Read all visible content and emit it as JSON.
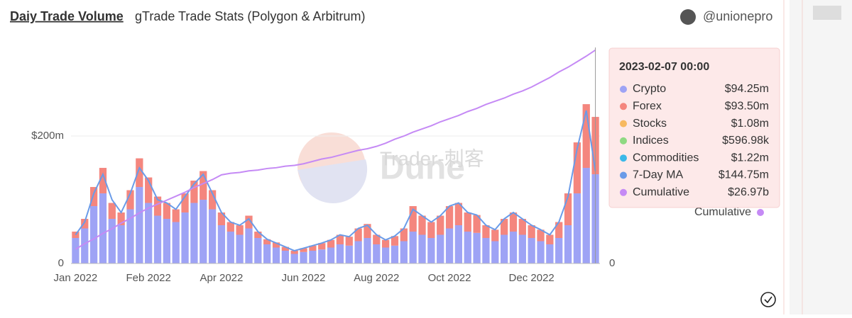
{
  "header": {
    "title": "Daiy Trade Volume",
    "subtitle": "gTrade Trade Stats (Polygon & Arbitrum)",
    "author": "@unionepro"
  },
  "watermark": {
    "brand": "Dune",
    "tag": "Trader-刺客"
  },
  "chart_data": {
    "type": "bar",
    "categories": [
      "Jan 2022",
      null,
      null,
      null,
      null,
      null,
      null,
      null,
      "Feb 2022",
      null,
      null,
      null,
      null,
      null,
      null,
      null,
      "Apr 2022",
      null,
      null,
      null,
      null,
      null,
      null,
      null,
      null,
      "Jun 2022",
      null,
      null,
      null,
      null,
      null,
      null,
      null,
      "Aug 2022",
      null,
      null,
      null,
      null,
      null,
      null,
      null,
      "Oct 2022",
      null,
      null,
      null,
      null,
      null,
      null,
      null,
      null,
      "Dec 2022",
      null,
      null,
      null,
      null,
      null,
      null,
      null
    ],
    "series": [
      {
        "name": "Crypto",
        "color": "#9ea3f5",
        "values": [
          40,
          55,
          90,
          110,
          70,
          60,
          85,
          120,
          95,
          75,
          70,
          65,
          80,
          95,
          100,
          85,
          60,
          50,
          45,
          55,
          40,
          30,
          25,
          20,
          15,
          18,
          20,
          22,
          25,
          30,
          28,
          35,
          40,
          30,
          25,
          28,
          35,
          50,
          45,
          40,
          45,
          55,
          60,
          50,
          48,
          40,
          35,
          45,
          50,
          45,
          40,
          35,
          30,
          40,
          60,
          110,
          150,
          140
        ]
      },
      {
        "name": "Forex",
        "color": "#f4867e",
        "values": [
          10,
          15,
          30,
          40,
          25,
          20,
          30,
          45,
          40,
          30,
          25,
          20,
          30,
          35,
          45,
          30,
          20,
          15,
          15,
          20,
          10,
          8,
          8,
          6,
          5,
          6,
          8,
          10,
          12,
          15,
          14,
          20,
          22,
          15,
          12,
          15,
          20,
          40,
          30,
          25,
          30,
          35,
          35,
          30,
          28,
          20,
          18,
          25,
          30,
          25,
          20,
          18,
          15,
          25,
          50,
          80,
          100,
          90
        ]
      },
      {
        "name": "7-Day MA",
        "color": "#6a9be8",
        "values": [
          45,
          65,
          110,
          140,
          100,
          80,
          110,
          150,
          130,
          100,
          95,
          85,
          105,
          125,
          140,
          110,
          80,
          65,
          60,
          70,
          50,
          38,
          32,
          26,
          20,
          24,
          28,
          32,
          37,
          45,
          42,
          55,
          60,
          45,
          37,
          43,
          55,
          85,
          75,
          65,
          75,
          90,
          95,
          80,
          76,
          60,
          53,
          70,
          80,
          70,
          60,
          53,
          45,
          65,
          105,
          180,
          240,
          145
        ]
      },
      {
        "name": "Cumulative",
        "color": "#c58af5",
        "axis": "y2",
        "values": [
          1.8,
          2.5,
          3.1,
          3.8,
          4.4,
          5.1,
          5.7,
          6.4,
          7.0,
          7.5,
          8.0,
          8.5,
          9.0,
          9.6,
          10.1,
          10.6,
          11.2,
          11.4,
          11.5,
          11.7,
          11.8,
          12.0,
          12.1,
          12.3,
          12.4,
          12.6,
          12.9,
          13.2,
          13.4,
          13.7,
          14.0,
          14.3,
          14.5,
          14.8,
          15.2,
          15.7,
          16.1,
          16.6,
          17.0,
          17.4,
          17.9,
          18.3,
          18.7,
          19.2,
          19.6,
          20.1,
          20.5,
          20.9,
          21.4,
          21.8,
          22.3,
          22.9,
          23.5,
          24.2,
          24.8,
          25.5,
          26.2,
          26.97
        ]
      }
    ],
    "ylim": [
      0,
      339
    ],
    "yticks": [
      0,
      {
        "value": 200,
        "label": "$200m"
      }
    ],
    "y2lim": [
      0,
      27.3
    ],
    "y2ticks": [
      0
    ],
    "grid": true
  },
  "tooltip": {
    "date": "2023-02-07 00:00",
    "items": [
      {
        "name": "Crypto",
        "color": "#9ea3f5",
        "value": 94.25,
        "label": "$94.25m"
      },
      {
        "name": "Forex",
        "color": "#f4867e",
        "value": 93.5,
        "label": "$93.50m"
      },
      {
        "name": "Stocks",
        "color": "#f7b960",
        "value": 1.08,
        "label": "$1.08m"
      },
      {
        "name": "Indices",
        "color": "#8ed982",
        "value": 0.59698,
        "label": "$596.98k"
      },
      {
        "name": "Commodities",
        "color": "#3bb8e8",
        "value": 1.22,
        "label": "$1.22m"
      },
      {
        "name": "7-Day MA",
        "color": "#6a9be8",
        "value": 144.75,
        "label": "$144.75m"
      },
      {
        "name": "Cumulative",
        "color": "#c58af5",
        "value": 26.97,
        "label": "$26.97b"
      }
    ]
  }
}
